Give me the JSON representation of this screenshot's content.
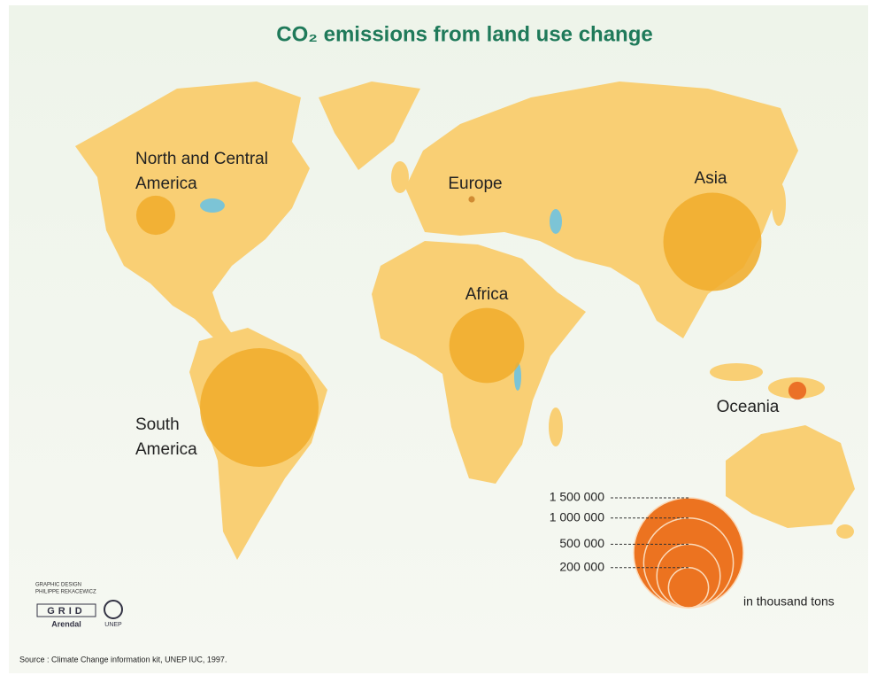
{
  "chart_data": {
    "type": "proportional-symbol-map",
    "title": "CO₂ emissions from land use change",
    "regions": [
      {
        "name": "North and Central America",
        "value": 190000,
        "color": "#f0ad2c"
      },
      {
        "name": "Europe",
        "value": 5000,
        "color": "#c9822a"
      },
      {
        "name": "Asia",
        "value": 1200000,
        "color": "#f0ad2c"
      },
      {
        "name": "Africa",
        "value": 700000,
        "color": "#f0ad2c"
      },
      {
        "name": "South America",
        "value": 1750000,
        "color": "#f0ad2c"
      },
      {
        "name": "Oceania",
        "value": 40000,
        "color": "#e8641c"
      }
    ],
    "legend": {
      "ticks": [
        {
          "value": 1500000,
          "label": "1 500 000"
        },
        {
          "value": 1000000,
          "label": "1 000 000"
        },
        {
          "value": 500000,
          "label": "500 000"
        },
        {
          "value": 200000,
          "label": "200 000"
        }
      ],
      "color": "#ec7320",
      "unit": "in thousand tons"
    },
    "credits": {
      "design": "GRAPHIC DESIGN",
      "designer": "PHILIPPE REKACEWICZ",
      "org1": "GRID",
      "org1_place": "Arendal",
      "org2": "UNEP"
    },
    "source": "Source : Climate Change information kit, UNEP IUC, 1997."
  }
}
